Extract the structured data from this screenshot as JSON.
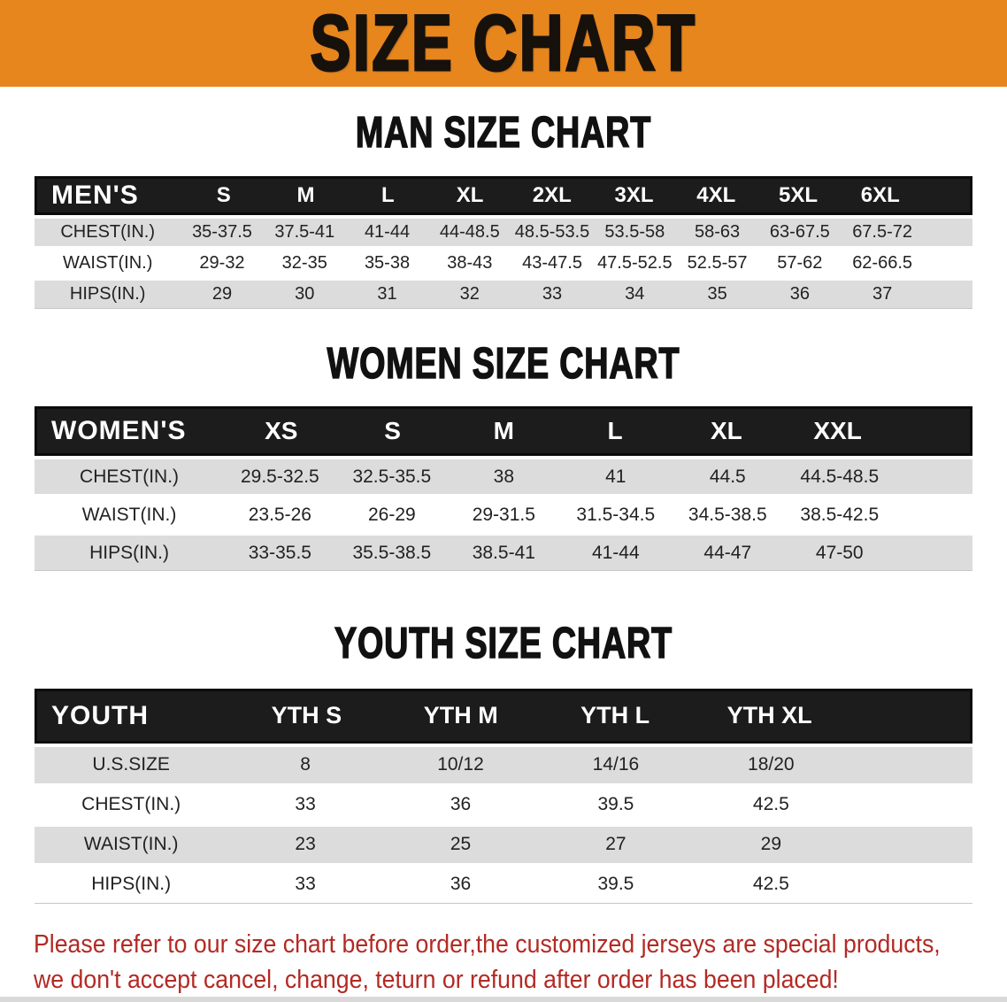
{
  "banner": {
    "title": "SIZE CHART"
  },
  "colors": {
    "banner_bg": "#E8861E",
    "header_bar": "#1C1C1C",
    "row_shade": "#DCDCDC",
    "notice_text": "#B32A24"
  },
  "sections": [
    {
      "heading": "MAN SIZE CHART",
      "corner_label": "MEN'S",
      "columns": [
        "S",
        "M",
        "L",
        "XL",
        "2XL",
        "3XL",
        "4XL",
        "5XL",
        "6XL"
      ],
      "rows": [
        {
          "label": "CHEST(IN.)",
          "values": [
            "35-37.5",
            "37.5-41",
            "41-44",
            "44-48.5",
            "48.5-53.5",
            "53.5-58",
            "58-63",
            "63-67.5",
            "67.5-72"
          ]
        },
        {
          "label": "WAIST(IN.)",
          "values": [
            "29-32",
            "32-35",
            "35-38",
            "38-43",
            "43-47.5",
            "47.5-52.5",
            "52.5-57",
            "57-62",
            "62-66.5"
          ]
        },
        {
          "label": "HIPS(IN.)",
          "values": [
            "29",
            "30",
            "31",
            "32",
            "33",
            "34",
            "35",
            "36",
            "37"
          ]
        }
      ]
    },
    {
      "heading": "WOMEN SIZE CHART",
      "corner_label": "WOMEN'S",
      "columns": [
        "XS",
        "S",
        "M",
        "L",
        "XL",
        "XXL"
      ],
      "rows": [
        {
          "label": "CHEST(IN.)",
          "values": [
            "29.5-32.5",
            "32.5-35.5",
            "38",
            "41",
            "44.5",
            "44.5-48.5"
          ]
        },
        {
          "label": "WAIST(IN.)",
          "values": [
            "23.5-26",
            "26-29",
            "29-31.5",
            "31.5-34.5",
            "34.5-38.5",
            "38.5-42.5"
          ]
        },
        {
          "label": "HIPS(IN.)",
          "values": [
            "33-35.5",
            "35.5-38.5",
            "38.5-41",
            "41-44",
            "44-47",
            "47-50"
          ]
        }
      ]
    },
    {
      "heading": "YOUTH SIZE CHART",
      "corner_label": "YOUTH",
      "columns": [
        "YTH S",
        "YTH M",
        "YTH L",
        "YTH XL"
      ],
      "rows": [
        {
          "label": "U.S.SIZE",
          "values": [
            "8",
            "10/12",
            "14/16",
            "18/20"
          ]
        },
        {
          "label": "CHEST(IN.)",
          "values": [
            "33",
            "36",
            "39.5",
            "42.5"
          ]
        },
        {
          "label": "WAIST(IN.)",
          "values": [
            "23",
            "25",
            "27",
            "29"
          ]
        },
        {
          "label": "HIPS(IN.)",
          "values": [
            "33",
            "36",
            "39.5",
            "42.5"
          ]
        }
      ]
    }
  ],
  "footer": {
    "line1": "Please refer to our size chart before order,the customized jerseys are special products,",
    "line2": "we don't accept cancel, change, teturn or refund after order has been placed!"
  }
}
